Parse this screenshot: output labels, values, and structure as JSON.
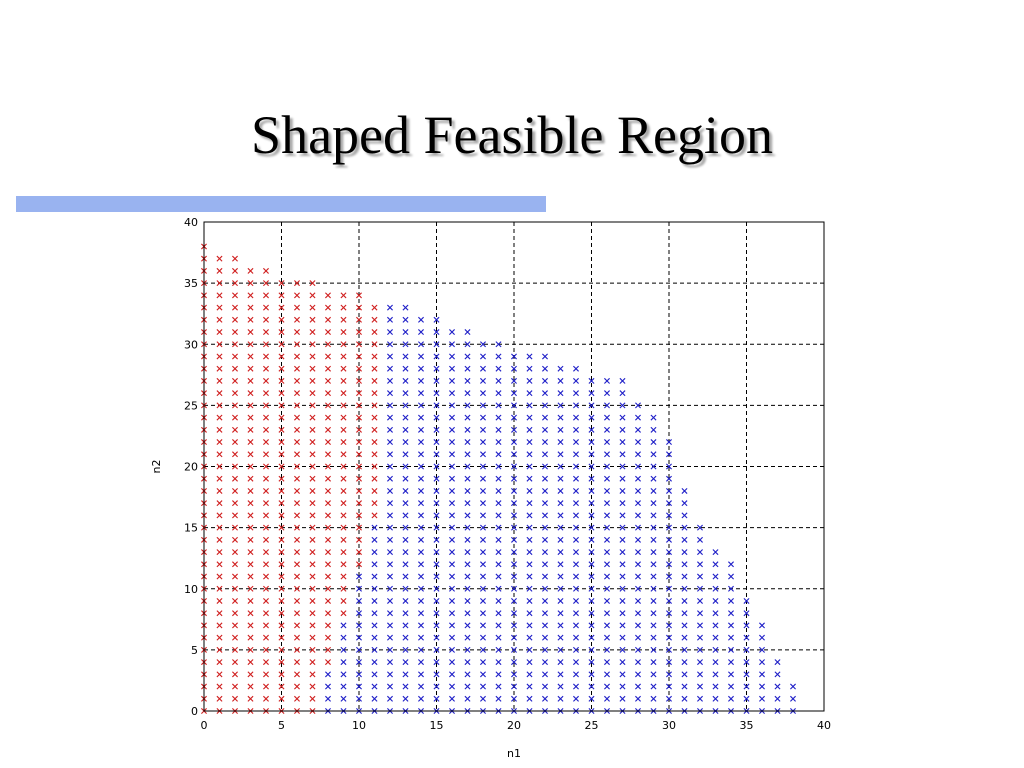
{
  "slide": {
    "title": "Shaped Feasible Region",
    "accent_bar_color": "#99b3f0"
  },
  "chart_data": {
    "type": "scatter",
    "title": "",
    "xlabel": "n1",
    "ylabel": "n2",
    "xlim": [
      0,
      40
    ],
    "ylim": [
      0,
      40
    ],
    "xticks": [
      0,
      5,
      10,
      15,
      20,
      25,
      30,
      35,
      40
    ],
    "yticks": [
      0,
      5,
      10,
      15,
      20,
      25,
      30,
      35,
      40
    ],
    "grid": true,
    "grid_style": "dashed",
    "marker": "x",
    "x_domain": [
      0,
      38
    ],
    "region_top_boundary": [
      38,
      37,
      37,
      36,
      36,
      35,
      35,
      35,
      34,
      34,
      34,
      33,
      33,
      33,
      32,
      32,
      31,
      31,
      30,
      30,
      29,
      29,
      29,
      28,
      28,
      27,
      27,
      27,
      25,
      24,
      22,
      18,
      15,
      13,
      12,
      9,
      7,
      4,
      2,
      0
    ],
    "series": [
      {
        "color": "#d02020",
        "rule": "points where n2 >= 4*n1 - 28 (and n1 <= 11)"
      },
      {
        "color": "#2020c8",
        "rule": "remaining feasible points"
      }
    ]
  }
}
